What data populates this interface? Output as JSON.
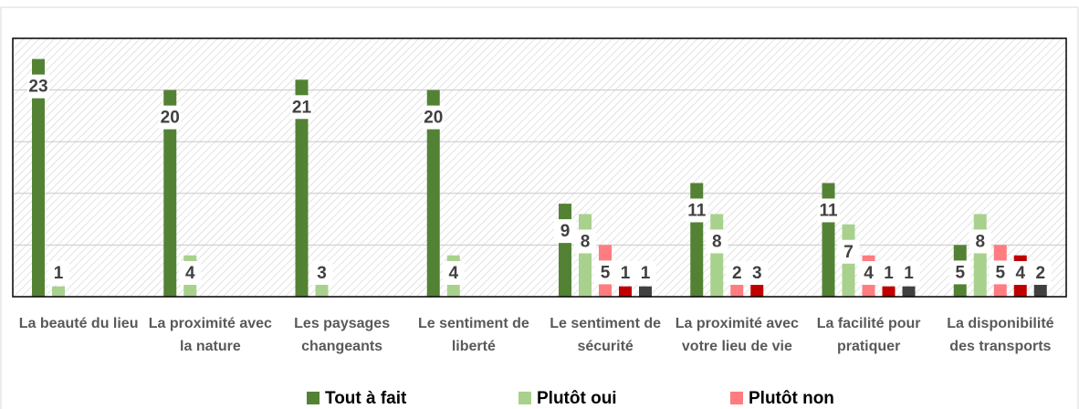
{
  "chart_data": {
    "type": "bar",
    "categories": [
      "La beauté du lieu",
      "La proximité avec la nature",
      "Les paysages changeants",
      "Le sentiment de liberté",
      "Le sentiment de sécurité",
      "La proximité avec votre lieu de vie",
      "La facilité pour pratiquer",
      "La disponibilité des transports"
    ],
    "series": [
      {
        "name": "Tout à fait",
        "color": "#548235",
        "values": [
          23,
          20,
          21,
          20,
          9,
          11,
          11,
          5
        ]
      },
      {
        "name": "Plutôt oui",
        "color": "#a9d18e",
        "values": [
          1,
          4,
          3,
          4,
          8,
          8,
          7,
          8
        ]
      },
      {
        "name": "Plutôt non",
        "color": "#ff7c80",
        "values": [
          null,
          null,
          null,
          null,
          5,
          2,
          4,
          5
        ]
      },
      {
        "color": "#c00000",
        "values": [
          null,
          null,
          null,
          null,
          1,
          3,
          1,
          4
        ]
      },
      {
        "color": "#404040",
        "values": [
          null,
          null,
          null,
          null,
          1,
          null,
          1,
          2
        ]
      }
    ],
    "ylim": [
      0,
      25
    ],
    "yticks": [
      0,
      5,
      10,
      15,
      20,
      25
    ],
    "grid": true
  }
}
